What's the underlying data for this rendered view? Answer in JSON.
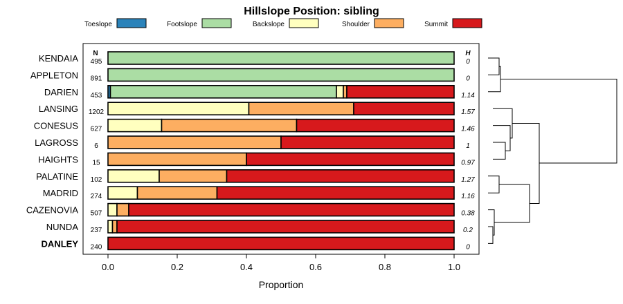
{
  "chart_data": {
    "type": "bar",
    "orientation": "horizontal",
    "stacked": true,
    "title": "Hillslope Position: sibling",
    "xlabel": "Proportion",
    "xlim": [
      0,
      1
    ],
    "x_ticks": [
      "0.0",
      "0.2",
      "0.4",
      "0.6",
      "0.8",
      "1.0"
    ],
    "legend_placement": "top",
    "n_header": "N",
    "h_header": "H",
    "series": [
      {
        "name": "Toeslope",
        "color": "#2b83ba"
      },
      {
        "name": "Footslope",
        "color": "#abdda4"
      },
      {
        "name": "Backslope",
        "color": "#ffffbf"
      },
      {
        "name": "Shoulder",
        "color": "#fdae61"
      },
      {
        "name": "Summit",
        "color": "#d7191c"
      }
    ],
    "rows": [
      {
        "label": "KENDAIA",
        "bold": false,
        "n": "495",
        "h": "0",
        "values": [
          0,
          1.0,
          0,
          0,
          0
        ]
      },
      {
        "label": "APPLETON",
        "bold": false,
        "n": "891",
        "h": "0",
        "values": [
          0,
          1.0,
          0,
          0,
          0
        ]
      },
      {
        "label": "DARIEN",
        "bold": false,
        "n": "453",
        "h": "1.14",
        "values": [
          0.007,
          0.653,
          0.02,
          0.01,
          0.31
        ]
      },
      {
        "label": "LANSING",
        "bold": false,
        "n": "1202",
        "h": "1.57",
        "values": [
          0,
          0,
          0.407,
          0.303,
          0.29
        ]
      },
      {
        "label": "CONESUS",
        "bold": false,
        "n": "627",
        "h": "1.46",
        "values": [
          0,
          0,
          0.155,
          0.39,
          0.455
        ]
      },
      {
        "label": "LAGROSS",
        "bold": false,
        "n": "6",
        "h": "1",
        "values": [
          0,
          0,
          0,
          0.5,
          0.5
        ]
      },
      {
        "label": "HAIGHTS",
        "bold": false,
        "n": "15",
        "h": "0.97",
        "values": [
          0,
          0,
          0,
          0.4,
          0.6
        ]
      },
      {
        "label": "PALATINE",
        "bold": false,
        "n": "102",
        "h": "1.27",
        "values": [
          0,
          0,
          0.148,
          0.195,
          0.657
        ]
      },
      {
        "label": "MADRID",
        "bold": false,
        "n": "274",
        "h": "1.16",
        "values": [
          0,
          0,
          0.085,
          0.23,
          0.685
        ]
      },
      {
        "label": "CAZENOVIA",
        "bold": false,
        "n": "507",
        "h": "0.38",
        "values": [
          0,
          0,
          0.026,
          0.034,
          0.94
        ]
      },
      {
        "label": "NUNDA",
        "bold": false,
        "n": "237",
        "h": "0.2",
        "values": [
          0,
          0,
          0.013,
          0.013,
          0.974
        ]
      },
      {
        "label": "DANLEY",
        "bold": true,
        "n": "240",
        "h": "0",
        "values": [
          0,
          0,
          0,
          0,
          1.0
        ]
      }
    ]
  }
}
